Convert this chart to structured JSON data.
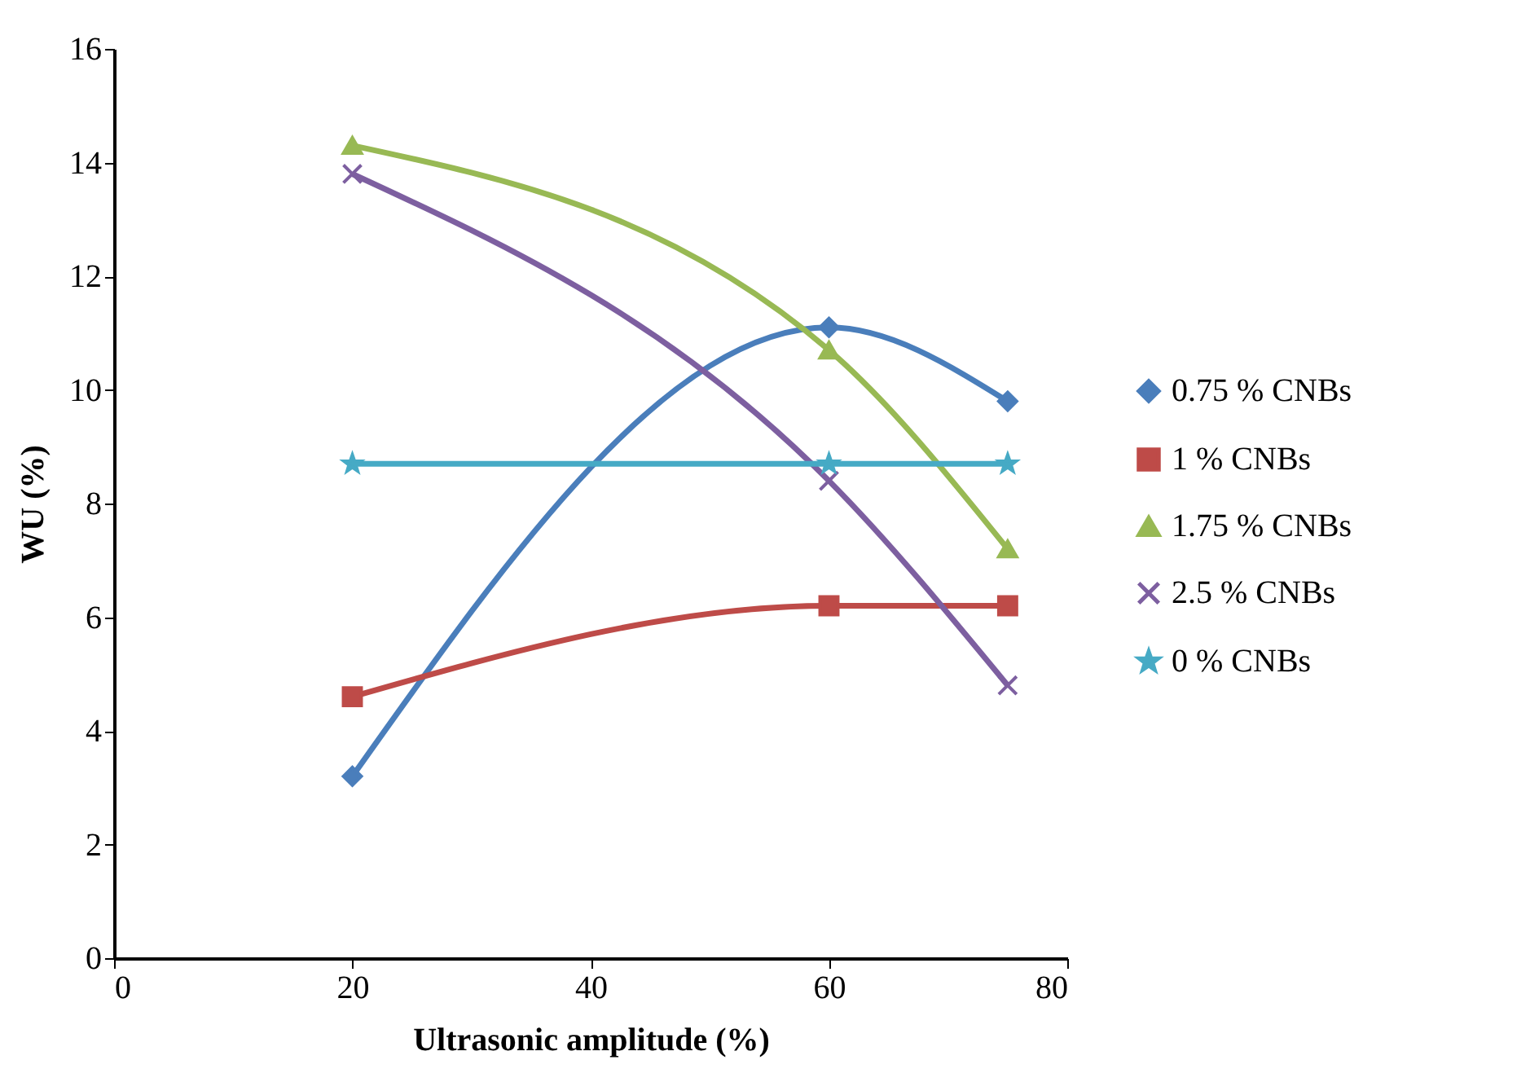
{
  "chart_data": {
    "type": "line",
    "xlabel": "Ultrasonic amplitude (%)",
    "ylabel": "WU (%)",
    "x": [
      20,
      60,
      75
    ],
    "xlim": [
      0,
      80
    ],
    "xticks": [
      0,
      20,
      40,
      60,
      80
    ],
    "ylim": [
      0,
      16
    ],
    "yticks": [
      0,
      2,
      4,
      6,
      8,
      10,
      12,
      14,
      16
    ],
    "grid": false,
    "legend": "right",
    "line_style": "solid",
    "series": [
      {
        "name": "0.75 % CNBs",
        "color": "#4a7ebb",
        "marker": "diamond",
        "values": [
          3.2,
          11.1,
          9.8
        ]
      },
      {
        "name": "1 % CNBs",
        "color": "#be4b48",
        "marker": "square",
        "values": [
          4.6,
          6.2,
          6.2
        ]
      },
      {
        "name": "1.75 % CNBs",
        "color": "#98b954",
        "marker": "triangle",
        "values": [
          14.3,
          10.7,
          7.2
        ]
      },
      {
        "name": "2.5 % CNBs",
        "color": "#7d5fa0",
        "marker": "cross",
        "values": [
          13.8,
          8.4,
          4.8
        ]
      },
      {
        "name": "0 % CNBs",
        "color": "#46aac5",
        "marker": "star",
        "values": [
          8.7,
          8.7,
          8.7
        ]
      }
    ]
  }
}
